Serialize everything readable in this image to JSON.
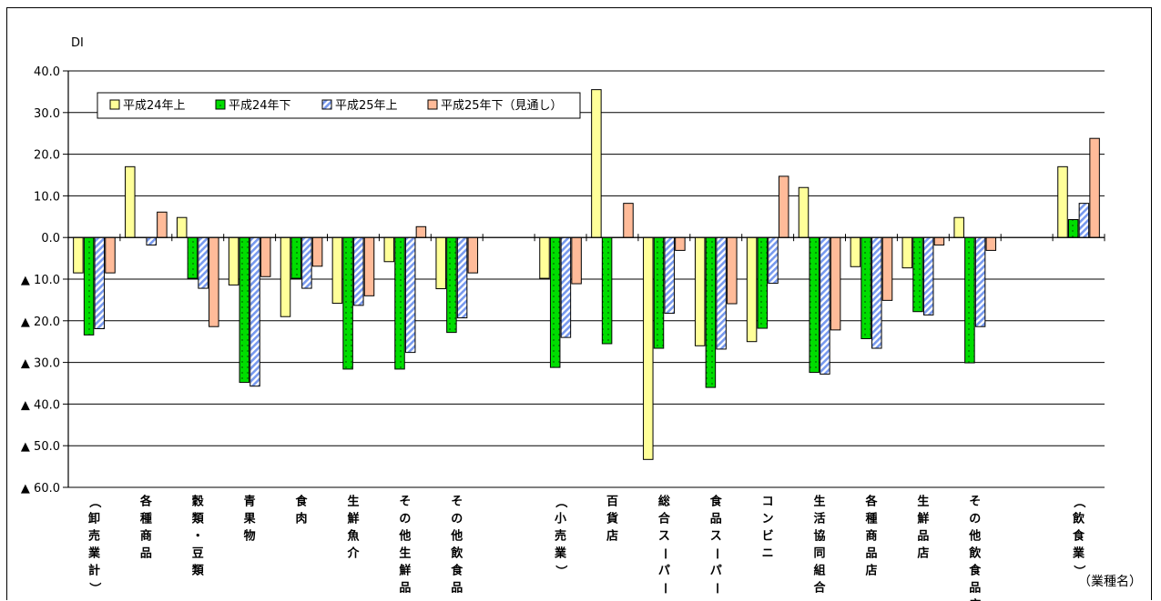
{
  "chart_data": {
    "type": "bar",
    "title": "",
    "ylabel": "DI",
    "xlabel": "（業種名）",
    "ylim": [
      -60,
      40
    ],
    "y_ticks": [
      40,
      30,
      20,
      10,
      0,
      -10,
      -20,
      -30,
      -40,
      -50,
      -60
    ],
    "y_tick_labels": [
      "40.0",
      "30.0",
      "20.0",
      "10.0",
      "0.0",
      "▲ 10.0",
      "▲ 20.0",
      "▲ 30.0",
      "▲ 40.0",
      "▲ 50.0",
      "▲ 60.0"
    ],
    "grid": true,
    "legend_position": "top-left",
    "categories": [
      "（卸売業計）",
      "各種商品",
      "穀類・豆類",
      "青果物",
      "食肉",
      "生鮮魚介",
      "その他生鮮品",
      "その他飲食品",
      "",
      "（小売業）",
      "百貨店",
      "総合スーパー",
      "食品スーパー",
      "コンビニ",
      "生活協同組合",
      "各種商品店",
      "生鮮品店",
      "その他飲食品店",
      "",
      "（飲食業）"
    ],
    "series": [
      {
        "name": "平成24年上",
        "color": "#ffff99",
        "pattern": "plain",
        "values": [
          -8.5,
          17.0,
          4.8,
          -11.4,
          -19.0,
          -15.8,
          -5.8,
          -12.3,
          null,
          -9.8,
          35.5,
          -53.3,
          -26.0,
          -25.0,
          12.0,
          -7.0,
          -7.3,
          4.8,
          null,
          17.0
        ]
      },
      {
        "name": "平成24年下",
        "color": "#00dd00",
        "pattern": "dots",
        "values": [
          -23.4,
          0,
          -9.8,
          -34.8,
          -9.8,
          -31.6,
          -31.6,
          -22.8,
          null,
          -31.2,
          -25.5,
          -26.6,
          -36.0,
          -21.8,
          -32.4,
          -24.3,
          -17.8,
          -30.1,
          null,
          4.3
        ]
      },
      {
        "name": "平成25年上",
        "color": "#99bbff",
        "pattern": "hatch",
        "values": [
          -21.9,
          -1.8,
          -12.2,
          -35.7,
          -12.2,
          -16.3,
          -27.6,
          -19.3,
          null,
          -24.0,
          0,
          -18.2,
          -26.8,
          -11.0,
          -32.8,
          -26.6,
          -18.6,
          -21.4,
          null,
          8.2
        ]
      },
      {
        "name": "平成25年下（見通し）",
        "color": "#ffbb99",
        "pattern": "plain",
        "values": [
          -8.5,
          6.1,
          -21.4,
          -9.4,
          -6.9,
          -14.0,
          2.6,
          -8.5,
          null,
          -11.1,
          8.2,
          -3.1,
          -15.9,
          14.7,
          -22.2,
          -15.1,
          -1.8,
          -3.1,
          null,
          23.8
        ]
      }
    ]
  }
}
